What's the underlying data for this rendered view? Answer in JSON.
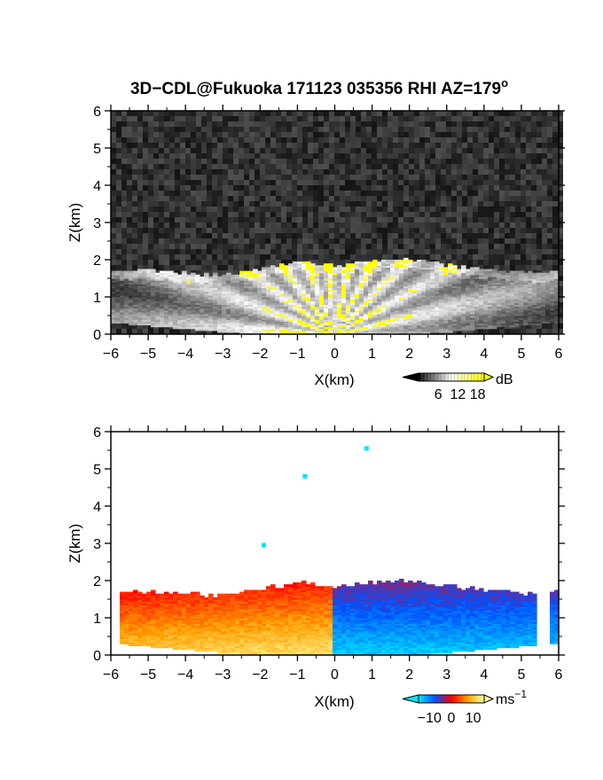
{
  "title": "3D−CDL@Fukuoka 171123 035356 RHI AZ=179",
  "title_superscript": "o",
  "chart_data": [
    {
      "type": "heatmap",
      "variable": "reflectivity",
      "xlabel": "X(km)",
      "ylabel": "Z(km)",
      "xlim": [
        -6,
        6
      ],
      "ylim": [
        0,
        6
      ],
      "xticks": [
        -6,
        -5,
        -4,
        -3,
        -2,
        -1,
        0,
        1,
        2,
        3,
        4,
        5,
        6
      ],
      "yticks": [
        0,
        1,
        2,
        3,
        4,
        5,
        6
      ],
      "xtick_labels": [
        "−6",
        "−5",
        "−4",
        "−3",
        "−2",
        "−1",
        "0",
        "1",
        "2",
        "3",
        "4",
        "5",
        "6"
      ],
      "ytick_labels": [
        "0",
        "1",
        "2",
        "3",
        "4",
        "5",
        "6"
      ],
      "colorbar": {
        "unit": "dB",
        "ticks": [
          6,
          12,
          18
        ],
        "tick_labels": [
          "6",
          "12",
          "18"
        ],
        "range": [
          0,
          20
        ],
        "colors": [
          "#000000",
          "#ffffff",
          "#ffff00"
        ]
      },
      "echo_top_km": [
        {
          "x": -6.0,
          "z": 1.75
        },
        {
          "x": -5.0,
          "z": 1.7
        },
        {
          "x": -4.0,
          "z": 1.65
        },
        {
          "x": -3.0,
          "z": 1.6
        },
        {
          "x": -2.0,
          "z": 1.75
        },
        {
          "x": -1.0,
          "z": 1.95
        },
        {
          "x": 0.0,
          "z": 1.85
        },
        {
          "x": 1.0,
          "z": 1.95
        },
        {
          "x": 2.0,
          "z": 2.0
        },
        {
          "x": 3.0,
          "z": 1.85
        },
        {
          "x": 4.0,
          "z": 1.75
        },
        {
          "x": 5.0,
          "z": 1.65
        },
        {
          "x": 6.0,
          "z": 1.7
        }
      ]
    },
    {
      "type": "heatmap",
      "variable": "doppler_velocity",
      "xlabel": "X(km)",
      "ylabel": "Z(km)",
      "xlim": [
        -6,
        6
      ],
      "ylim": [
        0,
        6
      ],
      "xticks": [
        -6,
        -5,
        -4,
        -3,
        -2,
        -1,
        0,
        1,
        2,
        3,
        4,
        5,
        6
      ],
      "yticks": [
        0,
        1,
        2,
        3,
        4,
        5,
        6
      ],
      "xtick_labels": [
        "−6",
        "−5",
        "−4",
        "−3",
        "−2",
        "−1",
        "0",
        "1",
        "2",
        "3",
        "4",
        "5",
        "6"
      ],
      "ytick_labels": [
        "0",
        "1",
        "2",
        "3",
        "4",
        "5",
        "6"
      ],
      "colorbar": {
        "unit": "ms",
        "unit_superscript": "−1",
        "ticks": [
          -10,
          0,
          10
        ],
        "tick_labels": [
          "−10",
          "0",
          "10"
        ],
        "range": [
          -15,
          15
        ],
        "colors": [
          "#00e5ff",
          "#0050ff",
          "#ff0000",
          "#ffa000",
          "#ffffa0"
        ]
      },
      "isolated_echoes_km": [
        {
          "x": 0.85,
          "z": 5.55
        },
        {
          "x": -0.8,
          "z": 4.8
        },
        {
          "x": -1.9,
          "z": 2.95
        }
      ]
    }
  ]
}
